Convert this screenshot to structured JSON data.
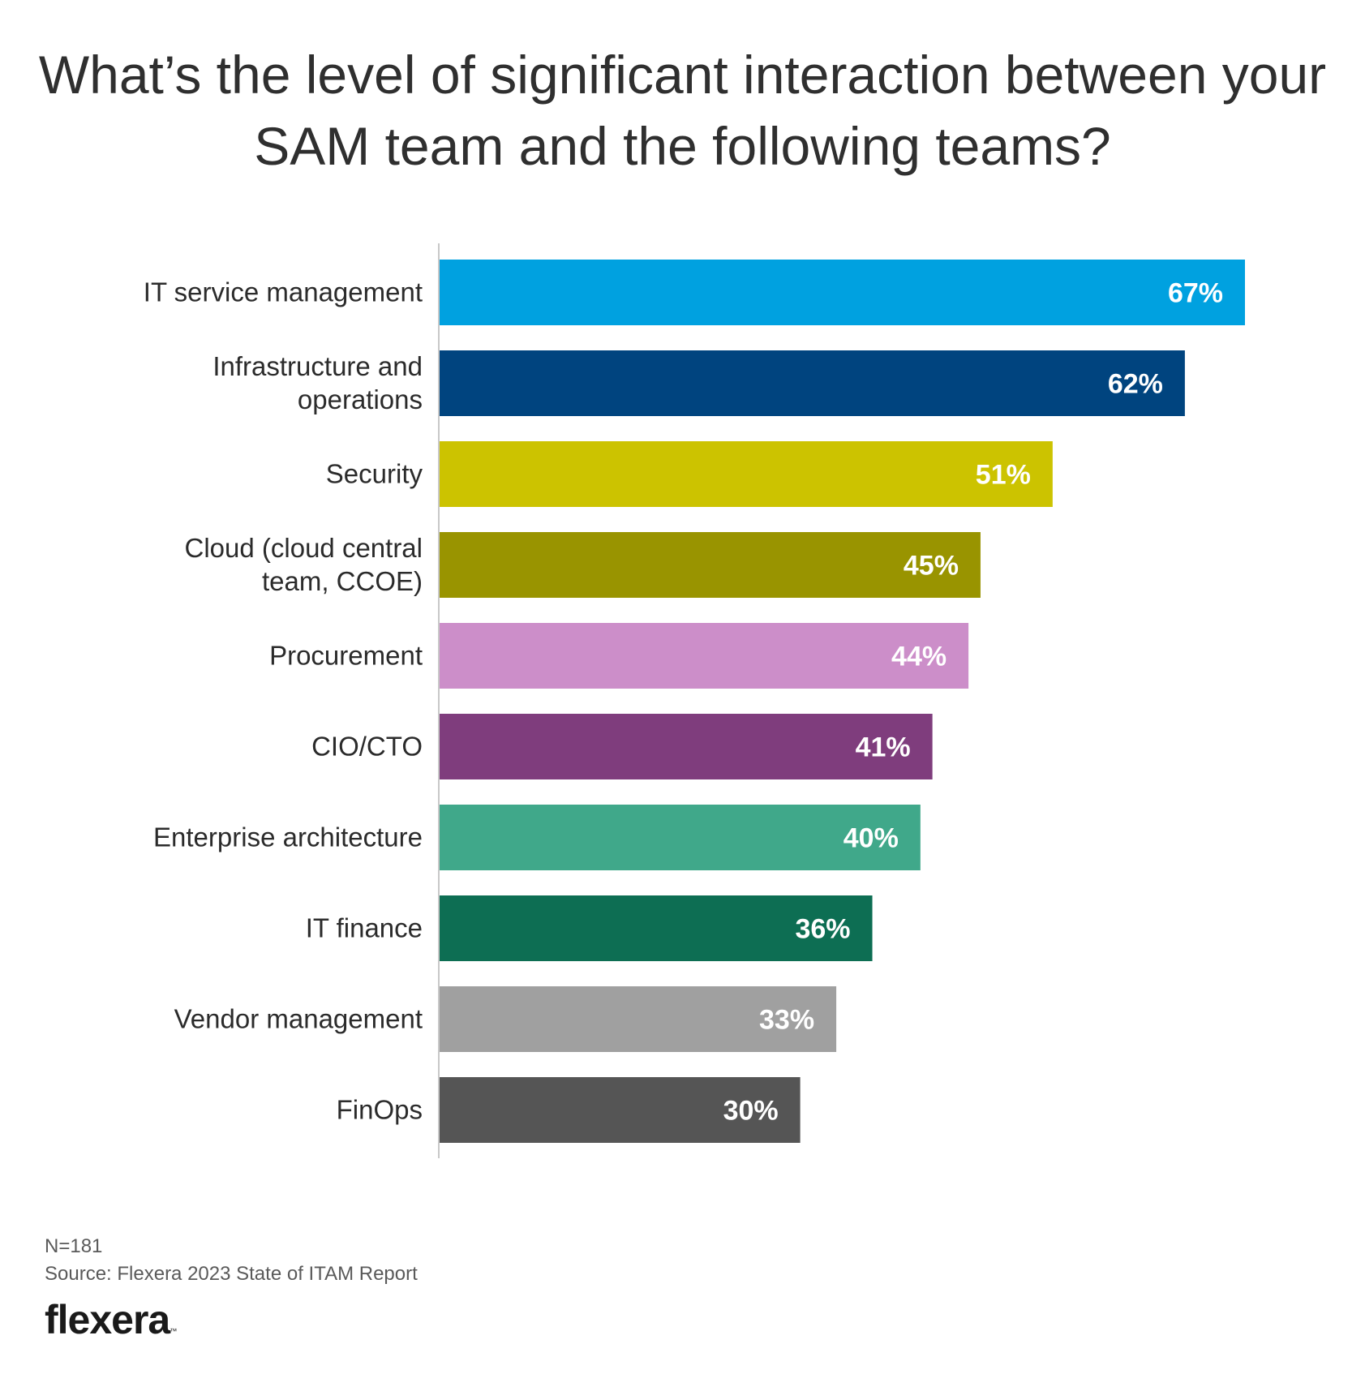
{
  "title": "What’s the level of significant interaction between your SAM team and the following teams?",
  "chart_data": {
    "type": "bar",
    "orientation": "horizontal",
    "categories": [
      "IT service management",
      "Infrastructure and operations",
      "Security",
      "Cloud (cloud central team, CCOE)",
      "Procurement",
      "CIO/CTO",
      "Enterprise architecture",
      "IT finance",
      "Vendor management",
      "FinOps"
    ],
    "category_lines": [
      [
        "IT service management"
      ],
      [
        "Infrastructure and",
        "operations"
      ],
      [
        "Security"
      ],
      [
        "Cloud (cloud central",
        "team, CCOE)"
      ],
      [
        "Procurement"
      ],
      [
        "CIO/CTO"
      ],
      [
        "Enterprise architecture"
      ],
      [
        "IT finance"
      ],
      [
        "Vendor management"
      ],
      [
        "FinOps"
      ]
    ],
    "values": [
      67,
      62,
      51,
      45,
      44,
      41,
      40,
      36,
      33,
      30
    ],
    "value_labels": [
      "67%",
      "62%",
      "51%",
      "45%",
      "44%",
      "41%",
      "40%",
      "36%",
      "33%",
      "30%"
    ],
    "colors": [
      "#00a1e0",
      "#00447f",
      "#ccc300",
      "#999400",
      "#cc8ec9",
      "#7f3d7d",
      "#40a88a",
      "#0d6e53",
      "#a0a0a0",
      "#555555"
    ],
    "xlim": [
      0,
      100
    ],
    "grid": false,
    "legend": "none"
  },
  "footnotes": {
    "n": "N=181",
    "source": "Source: Flexera 2023 State of ITAM Report"
  },
  "logo": {
    "text": "flexera",
    "tm": "™"
  }
}
